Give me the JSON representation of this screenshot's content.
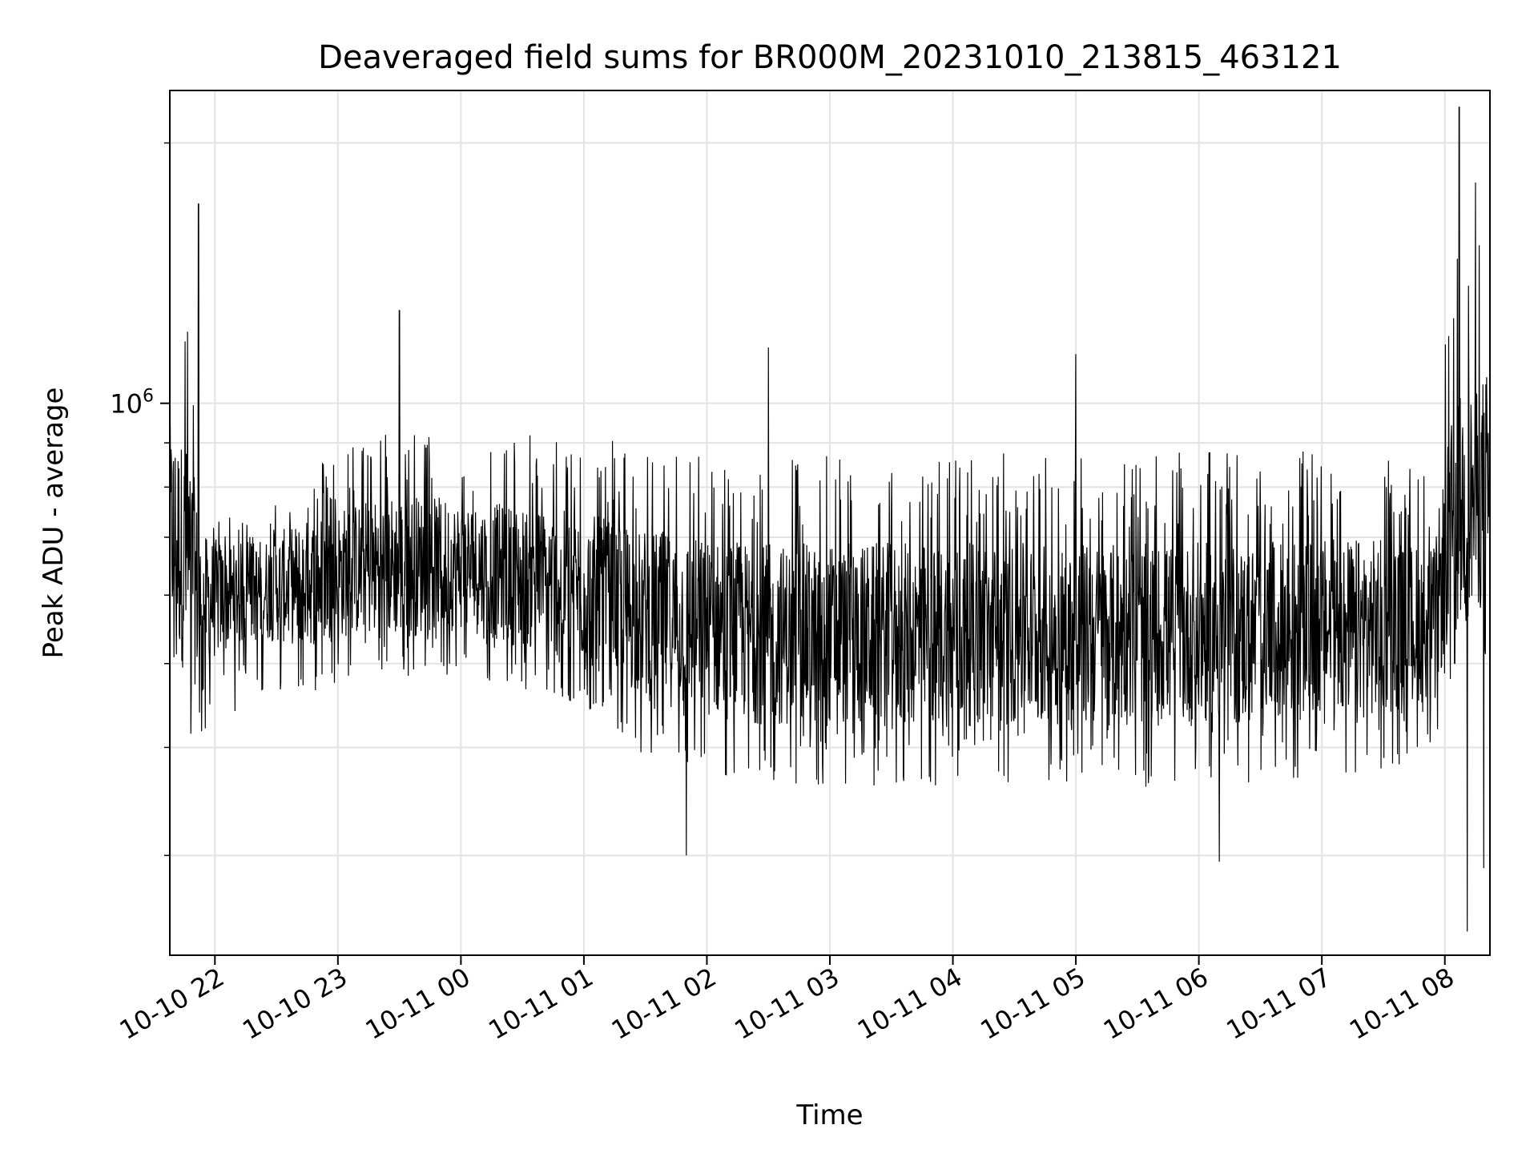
{
  "chart_data": {
    "type": "line",
    "title": "Deaveraged field sums for BR000M_20231010_213815_463121",
    "xlabel": "Time",
    "ylabel": "Peak ADU - average",
    "y_scale": "log",
    "ylim": [
      230000,
      2300000
    ],
    "xlim": [
      "2023-10-10 21:38",
      "2023-10-11 08:22"
    ],
    "grid": true,
    "line_color": "#000000",
    "x_ticks": [
      "10-10 22",
      "10-10 23",
      "10-11 00",
      "10-11 01",
      "10-11 02",
      "10-11 03",
      "10-11 04",
      "10-11 05",
      "10-11 06",
      "10-11 07",
      "10-11 08"
    ],
    "x_tick_times": [
      "2023-10-10 22:00",
      "2023-10-10 23:00",
      "2023-10-11 00:00",
      "2023-10-11 01:00",
      "2023-10-11 02:00",
      "2023-10-11 03:00",
      "2023-10-11 04:00",
      "2023-10-11 05:00",
      "2023-10-11 06:00",
      "2023-10-11 07:00",
      "2023-10-11 08:00"
    ],
    "y_tick_labels": [
      {
        "value": 1000000,
        "base": "10",
        "exp": "6"
      }
    ],
    "y_minor_ticks": [
      300000,
      400000,
      500000,
      600000,
      700000,
      800000,
      900000,
      2000000
    ],
    "series": [
      {
        "points": [
          {
            "x": "2023-10-10 21:38",
            "y": 720000,
            "min": 480000,
            "max": 1300000
          },
          {
            "x": "2023-10-10 21:48",
            "y": 640000,
            "min": 410000,
            "max": 1350000
          },
          {
            "x": "2023-10-10 21:53",
            "y": 590000,
            "min": 410000,
            "max": 780000
          },
          {
            "x": "2023-10-10 22:10",
            "y": 600000,
            "min": 440000,
            "max": 730000
          },
          {
            "x": "2023-10-10 22:25",
            "y": 610000,
            "min": 460000,
            "max": 760000
          },
          {
            "x": "2023-10-10 22:45",
            "y": 620000,
            "min": 450000,
            "max": 840000
          },
          {
            "x": "2023-10-10 23:05",
            "y": 640000,
            "min": 470000,
            "max": 900000
          },
          {
            "x": "2023-10-10 23:30",
            "y": 650000,
            "min": 460000,
            "max": 940000
          },
          {
            "x": "2023-10-11 00:00",
            "y": 650000,
            "min": 480000,
            "max": 900000
          },
          {
            "x": "2023-10-11 00:30",
            "y": 630000,
            "min": 460000,
            "max": 920000
          },
          {
            "x": "2023-10-11 01:00",
            "y": 610000,
            "min": 440000,
            "max": 920000
          },
          {
            "x": "2023-10-11 01:30",
            "y": 570000,
            "min": 390000,
            "max": 900000
          },
          {
            "x": "2023-10-11 02:00",
            "y": 550000,
            "min": 370000,
            "max": 880000
          },
          {
            "x": "2023-10-11 02:30",
            "y": 540000,
            "min": 360000,
            "max": 870000
          },
          {
            "x": "2023-10-11 03:00",
            "y": 540000,
            "min": 360000,
            "max": 880000
          },
          {
            "x": "2023-10-11 03:30",
            "y": 540000,
            "min": 360000,
            "max": 880000
          },
          {
            "x": "2023-10-11 04:00",
            "y": 540000,
            "min": 360000,
            "max": 880000
          },
          {
            "x": "2023-10-11 04:30",
            "y": 540000,
            "min": 360000,
            "max": 880000
          },
          {
            "x": "2023-10-11 05:00",
            "y": 540000,
            "min": 360000,
            "max": 880000
          },
          {
            "x": "2023-10-11 05:30",
            "y": 540000,
            "min": 360000,
            "max": 870000
          },
          {
            "x": "2023-10-11 06:00",
            "y": 540000,
            "min": 360000,
            "max": 880000
          },
          {
            "x": "2023-10-11 06:30",
            "y": 540000,
            "min": 360000,
            "max": 880000
          },
          {
            "x": "2023-10-11 07:00",
            "y": 550000,
            "min": 370000,
            "max": 880000
          },
          {
            "x": "2023-10-11 07:30",
            "y": 550000,
            "min": 370000,
            "max": 880000
          },
          {
            "x": "2023-10-11 07:55",
            "y": 560000,
            "min": 400000,
            "max": 820000
          },
          {
            "x": "2023-10-11 08:05",
            "y": 750000,
            "min": 500000,
            "max": 1500000
          },
          {
            "x": "2023-10-11 08:22",
            "y": 800000,
            "min": 500000,
            "max": 1600000
          }
        ],
        "spikes_up": [
          {
            "x": "2023-10-10 21:52",
            "y": 1700000
          },
          {
            "x": "2023-10-10 23:30",
            "y": 1280000
          },
          {
            "x": "2023-10-11 02:30",
            "y": 1160000
          },
          {
            "x": "2023-10-11 05:00",
            "y": 1140000
          },
          {
            "x": "2023-10-11 08:07",
            "y": 2200000
          },
          {
            "x": "2023-10-11 08:15",
            "y": 1800000
          }
        ],
        "spikes_down": [
          {
            "x": "2023-10-11 01:50",
            "y": 300000
          },
          {
            "x": "2023-10-11 06:10",
            "y": 295000
          },
          {
            "x": "2023-10-11 08:11",
            "y": 245000
          },
          {
            "x": "2023-10-11 08:19",
            "y": 290000
          }
        ]
      }
    ]
  }
}
